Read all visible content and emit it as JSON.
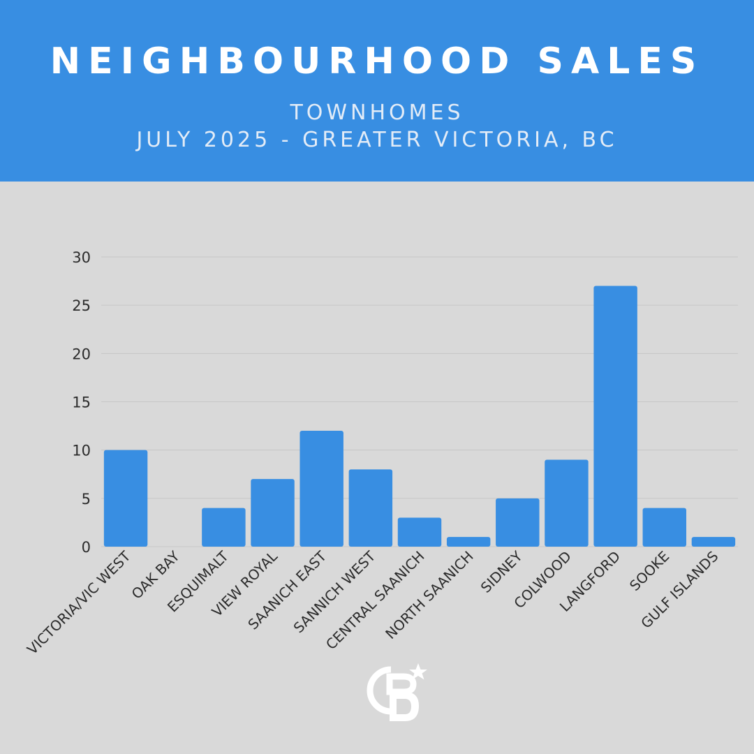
{
  "header": {
    "title": "NEIGHBOURHOOD SALES",
    "subtitle_line1": "TOWNHOMES",
    "subtitle_line2": "JULY 2025 - GREATER VICTORIA, BC"
  },
  "colors": {
    "accent": "#388ee2",
    "background": "#d9d9d9",
    "gridline": "#c6c6c6",
    "text": "#2b2b2b"
  },
  "logo": {
    "icon": "coldwell-banker-cb-star-logo",
    "text": "CB"
  },
  "chart_data": {
    "type": "bar",
    "categories": [
      "VICTORIA/VIC WEST",
      "OAK BAY",
      "ESQUIMALT",
      "VIEW ROYAL",
      "SAANICH EAST",
      "SANNICH WEST",
      "CENTRAL SAANICH",
      "NORTH SAANICH",
      "SIDNEY",
      "COLWOOD",
      "LANGFORD",
      "SOOKE",
      "GULF ISLANDS"
    ],
    "values": [
      10,
      0,
      4,
      7,
      12,
      8,
      3,
      1,
      5,
      9,
      27,
      4,
      1
    ],
    "ylim": [
      0,
      30
    ],
    "yticks": [
      0,
      5,
      10,
      15,
      20,
      25,
      30
    ],
    "grid": true,
    "legend": "none",
    "title": "",
    "xlabel": "",
    "ylabel": ""
  }
}
